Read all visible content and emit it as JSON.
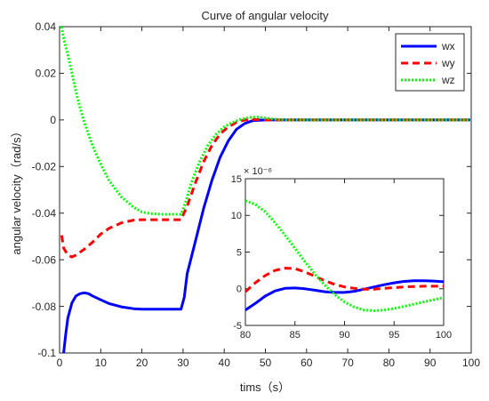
{
  "chart_data": [
    {
      "id": "main",
      "type": "line",
      "title": "Curve of angular velocity",
      "xlabel": "tims（s）",
      "ylabel": "angular velocity（rad/s）",
      "xlim": [
        0,
        100
      ],
      "ylim": [
        -0.1,
        0.04
      ],
      "xticks": [
        0,
        10,
        20,
        30,
        40,
        50,
        60,
        70,
        80,
        90,
        100
      ],
      "yticks": [
        -0.1,
        -0.08,
        -0.06,
        -0.04,
        -0.02,
        0,
        0.02,
        0.04
      ],
      "xtick_labels": [
        "0",
        "10",
        "20",
        "30",
        "40",
        "50",
        "60",
        "70",
        "80",
        "90",
        "100"
      ],
      "ytick_labels": [
        "-0.1",
        "-0.08",
        "-0.06",
        "-0.04",
        "-0.02",
        "0",
        "0.02",
        "0.04"
      ],
      "grid": false,
      "legend": {
        "position": "top-right",
        "entries": [
          {
            "name": "wx",
            "color": "#0000ff",
            "style": "solid"
          },
          {
            "name": "wy",
            "color": "#ff0000",
            "style": "dashed"
          },
          {
            "name": "wz",
            "color": "#00ff00",
            "style": "dotted"
          }
        ]
      },
      "series": [
        {
          "name": "wx",
          "color": "#0000ff",
          "style": "solid",
          "x": [
            1,
            1.5,
            2,
            3,
            4,
            5,
            6,
            7,
            8,
            10,
            12,
            15,
            18,
            20,
            22,
            25,
            29.5,
            30.3,
            31,
            33,
            35,
            37,
            39,
            41,
            43,
            45,
            47,
            50,
            55,
            60,
            70,
            80,
            90,
            100
          ],
          "y": [
            -0.1,
            -0.092,
            -0.085,
            -0.0785,
            -0.0755,
            -0.0745,
            -0.0742,
            -0.0745,
            -0.0755,
            -0.0772,
            -0.0788,
            -0.0802,
            -0.081,
            -0.0812,
            -0.0812,
            -0.0812,
            -0.0812,
            -0.076,
            -0.066,
            -0.052,
            -0.038,
            -0.026,
            -0.016,
            -0.009,
            -0.004,
            -0.0015,
            -0.0003,
            0,
            0,
            0,
            0,
            0,
            0,
            0
          ]
        },
        {
          "name": "wy",
          "color": "#ff0000",
          "style": "dashed",
          "x": [
            0.5,
            1,
            2,
            3,
            4,
            6,
            8,
            10,
            12,
            15,
            18,
            20,
            22,
            25,
            29.5,
            31,
            33,
            35,
            37,
            39,
            41,
            43,
            45,
            47,
            50,
            55,
            60,
            70,
            80,
            90,
            100
          ],
          "y": [
            -0.0495,
            -0.055,
            -0.058,
            -0.0588,
            -0.058,
            -0.0555,
            -0.0525,
            -0.049,
            -0.0465,
            -0.0442,
            -0.043,
            -0.0428,
            -0.0428,
            -0.0428,
            -0.0428,
            -0.037,
            -0.027,
            -0.018,
            -0.011,
            -0.006,
            -0.003,
            -0.001,
            0,
            0.0002,
            0,
            0,
            0,
            0,
            0,
            0,
            0
          ]
        },
        {
          "name": "wz",
          "color": "#00ff00",
          "style": "dotted",
          "x": [
            0.5,
            1,
            2,
            3,
            4,
            5,
            6,
            8,
            10,
            12,
            15,
            18,
            20,
            22,
            25,
            29.5,
            30.5,
            32,
            34,
            36,
            38,
            40,
            42,
            44,
            46,
            48,
            50,
            52,
            55,
            60,
            70,
            80,
            90,
            100
          ],
          "y": [
            0.04,
            0.035,
            0.028,
            0.02,
            0.012,
            0.005,
            -0.001,
            -0.011,
            -0.019,
            -0.026,
            -0.033,
            -0.0375,
            -0.0395,
            -0.0402,
            -0.0405,
            -0.0405,
            -0.036,
            -0.027,
            -0.018,
            -0.011,
            -0.0062,
            -0.003,
            -0.001,
            0.0002,
            0.001,
            0.0012,
            0.0008,
            0.0003,
            0,
            0,
            0,
            0,
            0,
            0
          ]
        }
      ]
    },
    {
      "id": "inset",
      "type": "line",
      "xlim": [
        80,
        100
      ],
      "ylim": [
        -5,
        15
      ],
      "xticks": [
        80,
        85,
        90,
        95,
        100
      ],
      "yticks": [
        -5,
        0,
        5,
        10,
        15
      ],
      "xtick_labels": [
        "80",
        "85",
        "90",
        "95",
        "100"
      ],
      "ytick_labels": [
        "-5",
        "0",
        "5",
        "10",
        "15"
      ],
      "y_multiplier": "× 10⁻⁶",
      "series": [
        {
          "name": "wx",
          "color": "#0000ff",
          "style": "solid",
          "x": [
            80,
            81,
            82,
            83,
            84,
            85,
            86,
            87,
            88,
            89,
            90,
            91,
            92,
            93,
            94,
            95,
            96,
            97,
            98,
            99,
            100
          ],
          "y": [
            -2.9,
            -2.0,
            -1.0,
            -0.3,
            0.05,
            0.1,
            0.0,
            -0.2,
            -0.4,
            -0.5,
            -0.5,
            -0.35,
            -0.05,
            0.25,
            0.55,
            0.8,
            1.0,
            1.1,
            1.1,
            1.05,
            0.95
          ]
        },
        {
          "name": "wy",
          "color": "#ff0000",
          "style": "dashed",
          "x": [
            80,
            81,
            82,
            83,
            84,
            85,
            86,
            87,
            88,
            89,
            90,
            91,
            92,
            93,
            94,
            95,
            96,
            97,
            98,
            99,
            100
          ],
          "y": [
            -0.4,
            0.8,
            1.8,
            2.5,
            2.8,
            2.75,
            2.3,
            1.7,
            1.1,
            0.6,
            0.25,
            0.05,
            -0.05,
            -0.05,
            0.05,
            0.15,
            0.25,
            0.3,
            0.35,
            0.35,
            0.35
          ]
        },
        {
          "name": "wz",
          "color": "#00ff00",
          "style": "dotted",
          "x": [
            80,
            81,
            82,
            83,
            84,
            85,
            86,
            87,
            88,
            89,
            90,
            91,
            92,
            93,
            94,
            95,
            96,
            97,
            98,
            99,
            100
          ],
          "y": [
            12.0,
            11.5,
            10.5,
            9.0,
            7.3,
            5.5,
            3.7,
            2.0,
            0.5,
            -0.8,
            -1.8,
            -2.5,
            -2.9,
            -3.0,
            -2.9,
            -2.7,
            -2.4,
            -2.1,
            -1.8,
            -1.5,
            -1.2
          ]
        }
      ]
    }
  ]
}
